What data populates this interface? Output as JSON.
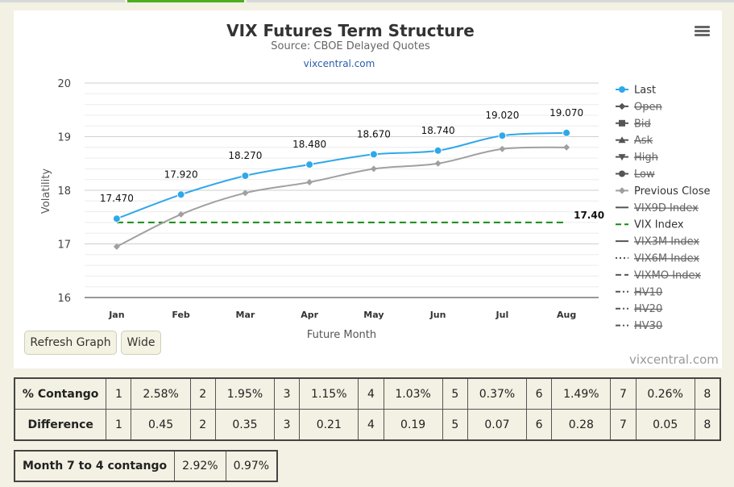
{
  "header": {
    "menu_icon": "hamburger-menu-icon"
  },
  "chart_data": {
    "type": "line",
    "title": "VIX Futures Term Structure",
    "subtitle": "Source: CBOE Delayed Quotes",
    "link": "vixcentral.com",
    "xlabel": "Future Month",
    "ylabel": "Volatility",
    "categories": [
      "Jan",
      "Feb",
      "Mar",
      "Apr",
      "May",
      "Jun",
      "Jul",
      "Aug"
    ],
    "ylim": [
      16,
      20
    ],
    "yticks": [
      "16",
      "17",
      "18",
      "19",
      "20"
    ],
    "series": [
      {
        "name": "Last",
        "values": [
          17.47,
          17.92,
          18.27,
          18.48,
          18.67,
          18.74,
          19.02,
          19.07
        ],
        "labels": [
          "17.470",
          "17.920",
          "18.270",
          "18.480",
          "18.670",
          "18.740",
          "19.020",
          "19.070"
        ],
        "color": "#2fa8ea"
      },
      {
        "name": "Previous Close",
        "values": [
          16.95,
          17.55,
          17.95,
          18.15,
          18.4,
          18.5,
          18.77,
          18.8
        ],
        "color": "#a0a0a0"
      },
      {
        "name": "VIX Index",
        "values": [
          17.4,
          17.4,
          17.4,
          17.4,
          17.4,
          17.4,
          17.4,
          17.4
        ],
        "end_label": "17.40",
        "color": "#138b13"
      }
    ],
    "legend": {
      "placement": "right",
      "items": [
        {
          "name": "Last",
          "symbol": "circle",
          "line": "solid",
          "color": "#2fa8ea",
          "hidden": false
        },
        {
          "name": "Open",
          "symbol": "diamond",
          "line": "solid",
          "color": "#555555",
          "hidden": true
        },
        {
          "name": "Bid",
          "symbol": "square",
          "line": "solid",
          "color": "#555555",
          "hidden": true
        },
        {
          "name": "Ask",
          "symbol": "triangle",
          "line": "solid",
          "color": "#555555",
          "hidden": true
        },
        {
          "name": "High",
          "symbol": "triangle-down",
          "line": "solid",
          "color": "#555555",
          "hidden": true
        },
        {
          "name": "Low",
          "symbol": "circle",
          "line": "solid",
          "color": "#555555",
          "hidden": true
        },
        {
          "name": "Previous Close",
          "symbol": "diamond",
          "line": "solid",
          "color": "#a0a0a0",
          "hidden": false
        },
        {
          "name": "VIX9D Index",
          "symbol": "",
          "line": "solid",
          "color": "#555555",
          "hidden": true
        },
        {
          "name": "VIX Index",
          "symbol": "",
          "line": "dashed",
          "color": "#138b13",
          "hidden": false
        },
        {
          "name": "VIX3M Index",
          "symbol": "",
          "line": "solid",
          "color": "#555555",
          "hidden": true
        },
        {
          "name": "VIX6M Index",
          "symbol": "",
          "line": "dotted",
          "color": "#555555",
          "hidden": true
        },
        {
          "name": "VIXMO Index",
          "symbol": "",
          "line": "dashed",
          "color": "#555555",
          "hidden": true
        },
        {
          "name": "HV10",
          "symbol": "",
          "line": "dashdot",
          "color": "#555555",
          "hidden": true
        },
        {
          "name": "HV20",
          "symbol": "",
          "line": "dashdot",
          "color": "#555555",
          "hidden": true
        },
        {
          "name": "HV30",
          "symbol": "",
          "line": "dashdot",
          "color": "#555555",
          "hidden": true
        }
      ]
    },
    "credit": "vixcentral.com",
    "grid": true
  },
  "buttons": {
    "refresh": "Refresh Graph",
    "wide": "Wide"
  },
  "contango_table": {
    "rows": [
      {
        "label": "% Contango",
        "cells": [
          {
            "n": "1",
            "v": "2.58%"
          },
          {
            "n": "2",
            "v": "1.95%"
          },
          {
            "n": "3",
            "v": "1.15%"
          },
          {
            "n": "4",
            "v": "1.03%"
          },
          {
            "n": "5",
            "v": "0.37%"
          },
          {
            "n": "6",
            "v": "1.49%"
          },
          {
            "n": "7",
            "v": "0.26%"
          }
        ],
        "last_n": "8"
      },
      {
        "label": "Difference",
        "cells": [
          {
            "n": "1",
            "v": "0.45"
          },
          {
            "n": "2",
            "v": "0.35"
          },
          {
            "n": "3",
            "v": "0.21"
          },
          {
            "n": "4",
            "v": "0.19"
          },
          {
            "n": "5",
            "v": "0.07"
          },
          {
            "n": "6",
            "v": "0.28"
          },
          {
            "n": "7",
            "v": "0.05"
          }
        ],
        "last_n": "8"
      }
    ]
  },
  "month_table": {
    "label": "Month 7 to 4 contango",
    "values": [
      "2.92%",
      "0.97%"
    ]
  }
}
